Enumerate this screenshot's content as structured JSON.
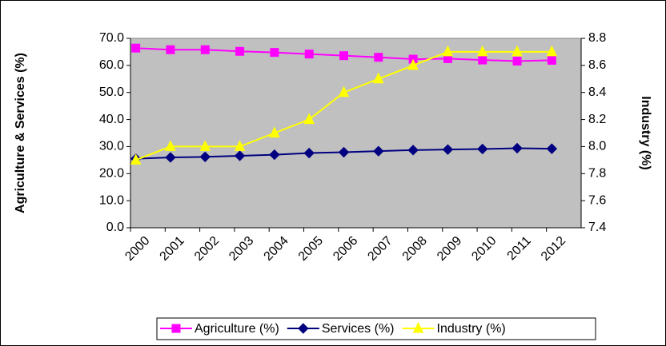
{
  "chart_data": {
    "type": "line",
    "categories": [
      "2000",
      "2001",
      "2002",
      "2003",
      "2004",
      "2005",
      "2006",
      "2007",
      "2008",
      "2009",
      "2010",
      "2011",
      "2012"
    ],
    "series": [
      {
        "name": "Agriculture (%)",
        "color": "#ff00ff",
        "marker": "square",
        "values": [
          66.4,
          65.8,
          65.8,
          65.2,
          64.8,
          64.2,
          63.6,
          63.0,
          62.3,
          62.5,
          62.0,
          61.6,
          61.9
        ]
      },
      {
        "name": "Services (%)",
        "color": "#000080",
        "marker": "diamond",
        "values": [
          25.5,
          26.0,
          26.2,
          26.6,
          27.0,
          27.6,
          27.9,
          28.3,
          28.7,
          28.9,
          29.1,
          29.4,
          29.2
        ]
      },
      {
        "name": "Industry (%)",
        "color": "#ffff00",
        "marker": "triangle",
        "axis": "y2",
        "values": [
          7.9,
          8.0,
          8.0,
          8.0,
          8.1,
          8.2,
          8.4,
          8.5,
          8.6,
          8.7,
          8.7,
          8.7,
          8.7
        ]
      }
    ],
    "ylabel": "Agriculture & Services (%)",
    "y2label": "Industry (%)",
    "ylim": [
      0,
      70
    ],
    "yticks": [
      {
        "value": 0,
        "label": "0.0"
      },
      {
        "value": 10,
        "label": "10.0"
      },
      {
        "value": 20,
        "label": "20.0"
      },
      {
        "value": 30,
        "label": "30.0"
      },
      {
        "value": 40,
        "label": "40.0"
      },
      {
        "value": 50,
        "label": "50.0"
      },
      {
        "value": 60,
        "label": "60.0"
      },
      {
        "value": 70,
        "label": "70.0"
      }
    ],
    "y2lim": [
      7.4,
      8.8
    ],
    "y2ticks": [
      7.4,
      7.6,
      7.8,
      {
        "value": 8,
        "label": "8.0"
      },
      8.2,
      8.4,
      8.6,
      8.8
    ],
    "plot_background": "#c0c0c0",
    "legend": "bottom"
  }
}
